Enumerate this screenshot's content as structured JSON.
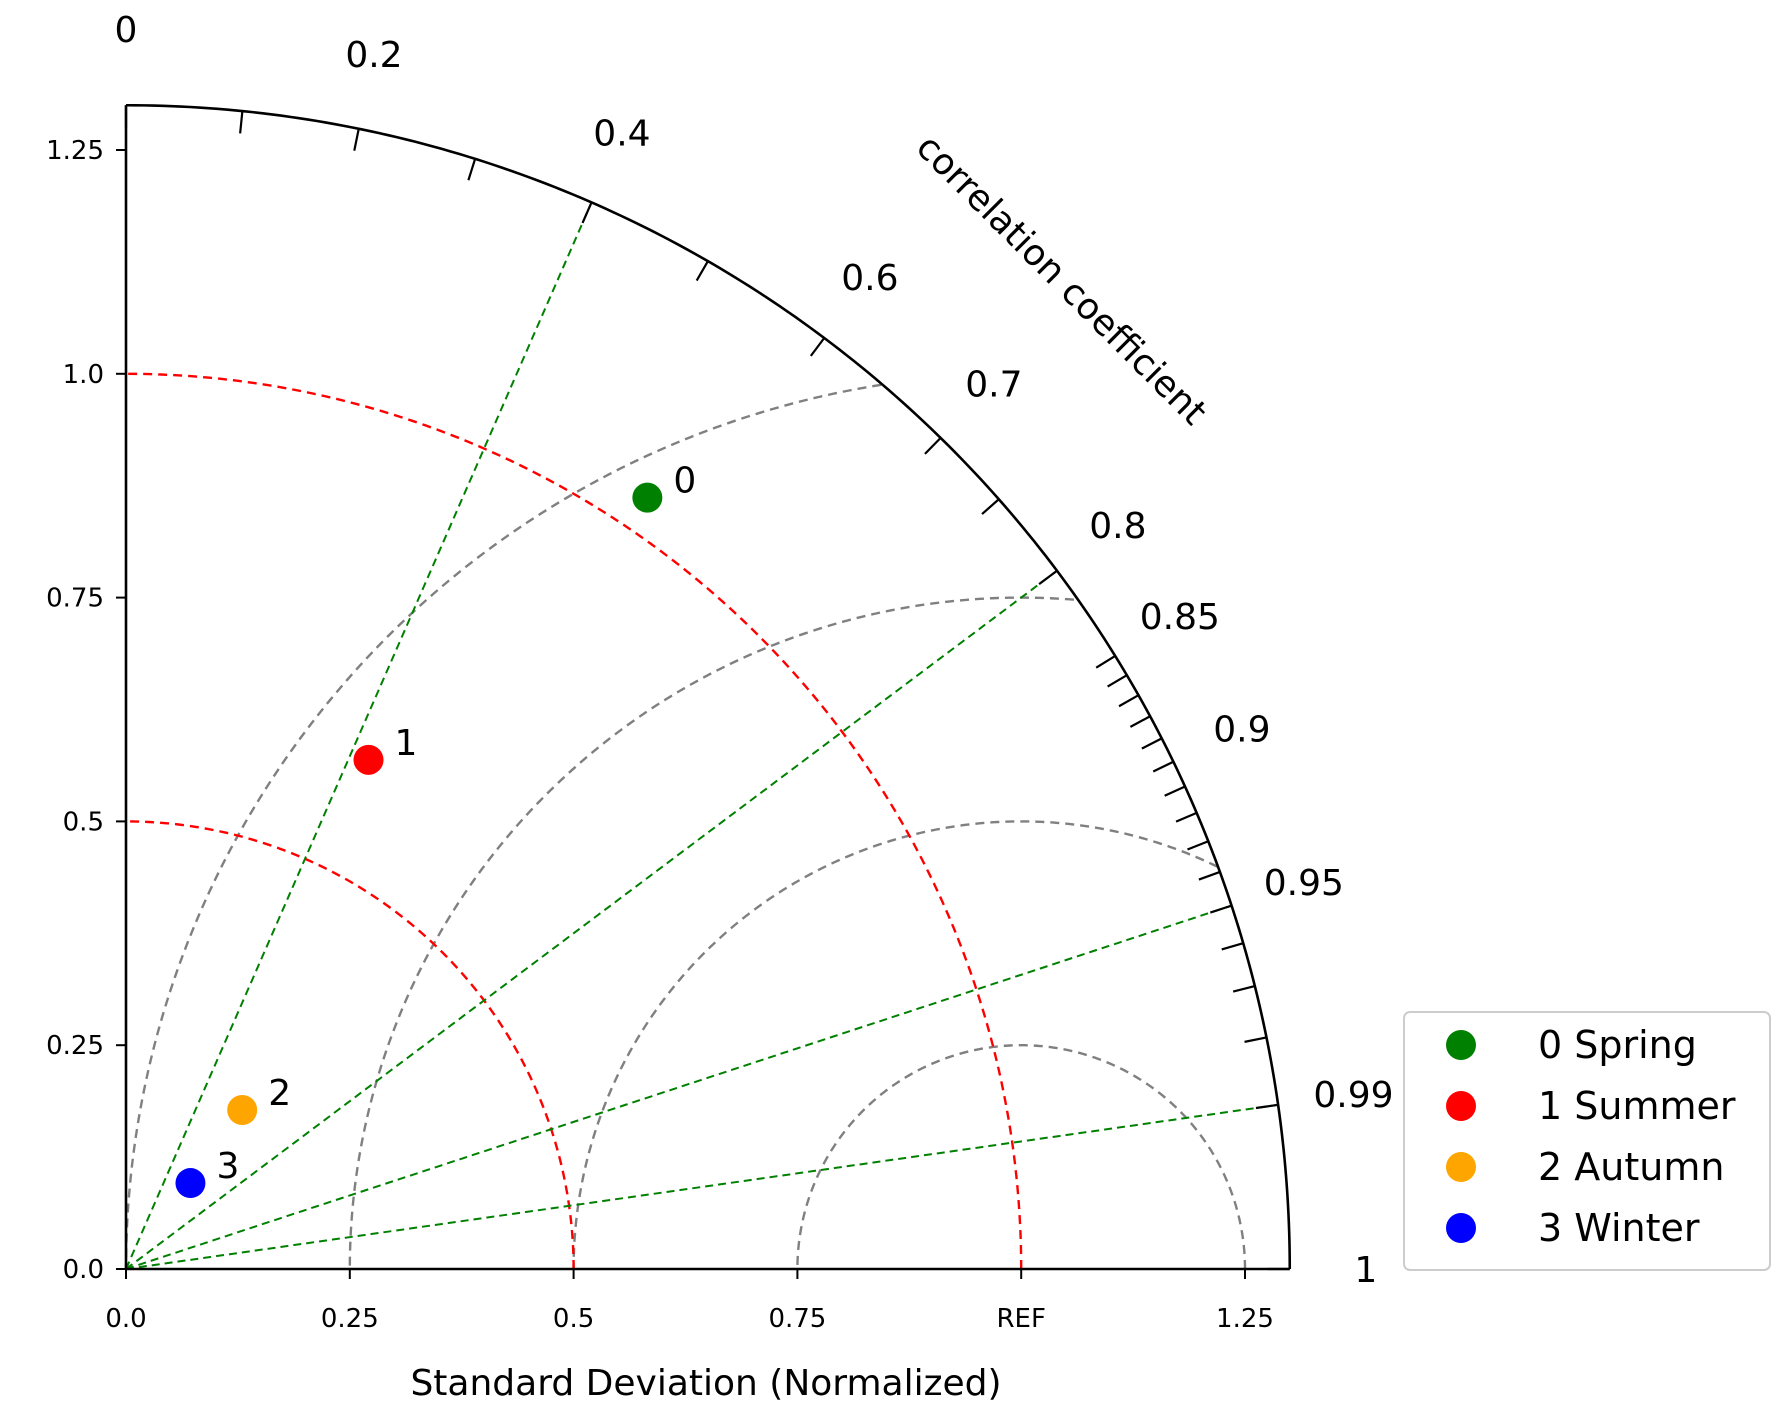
{
  "chart_data": {
    "type": "scatter",
    "subtype": "taylor-diagram",
    "xlabel": "Standard Deviation (Normalized)",
    "correlation_label": "correlation coefficient",
    "std_ticks": [
      "0.0",
      "0.25",
      "0.5",
      "0.75",
      "REF",
      "1.25"
    ],
    "std_tick_values": [
      0.0,
      0.25,
      0.5,
      0.75,
      1.0,
      1.25
    ],
    "std_ylabels": [
      "0.0",
      "0.25",
      "0.5",
      "0.75",
      "1.0",
      "1.25"
    ],
    "std_range": [
      0,
      1.3
    ],
    "ref_std": 1.0,
    "correlation_tick_labels": [
      "0",
      "0.2",
      "0.4",
      "0.6",
      "0.7",
      "0.8",
      "0.85",
      "0.9",
      "0.95",
      "0.99",
      "1"
    ],
    "correlation_tick_values": [
      0,
      0.2,
      0.4,
      0.6,
      0.7,
      0.8,
      0.85,
      0.9,
      0.95,
      0.99,
      1.0
    ],
    "correlation_minor_ticks": [
      0.1,
      0.3,
      0.5,
      0.75,
      0.86,
      0.87,
      0.88,
      0.89,
      0.91,
      0.92,
      0.93,
      0.94,
      0.96,
      0.97,
      0.98
    ],
    "correlation_reference_lines": [
      0.4,
      0.8,
      0.95,
      0.99
    ],
    "std_reference_arcs": [
      0.5,
      1.0
    ],
    "crmse_contours": [
      0.25,
      0.5,
      0.75,
      1.0
    ],
    "legend_position": "lower-right-outside",
    "points": [
      {
        "marker_label": "0",
        "legend": "0 Spring",
        "std": 1.04,
        "corr": 0.56,
        "color": "#008000"
      },
      {
        "marker_label": "1",
        "legend": "1 Summer",
        "std": 0.63,
        "corr": 0.43,
        "color": "#ff0000"
      },
      {
        "marker_label": "2",
        "legend": "2 Autumn",
        "std": 0.22,
        "corr": 0.59,
        "color": "#ffa500"
      },
      {
        "marker_label": "3",
        "legend": "3 Winter",
        "std": 0.12,
        "corr": 0.6,
        "color": "#0000ff"
      }
    ],
    "colors": {
      "axis": "#000000",
      "correlation_lines": "#008000",
      "std_arcs": "#ff0000",
      "crmse_arcs": "#808080"
    }
  }
}
